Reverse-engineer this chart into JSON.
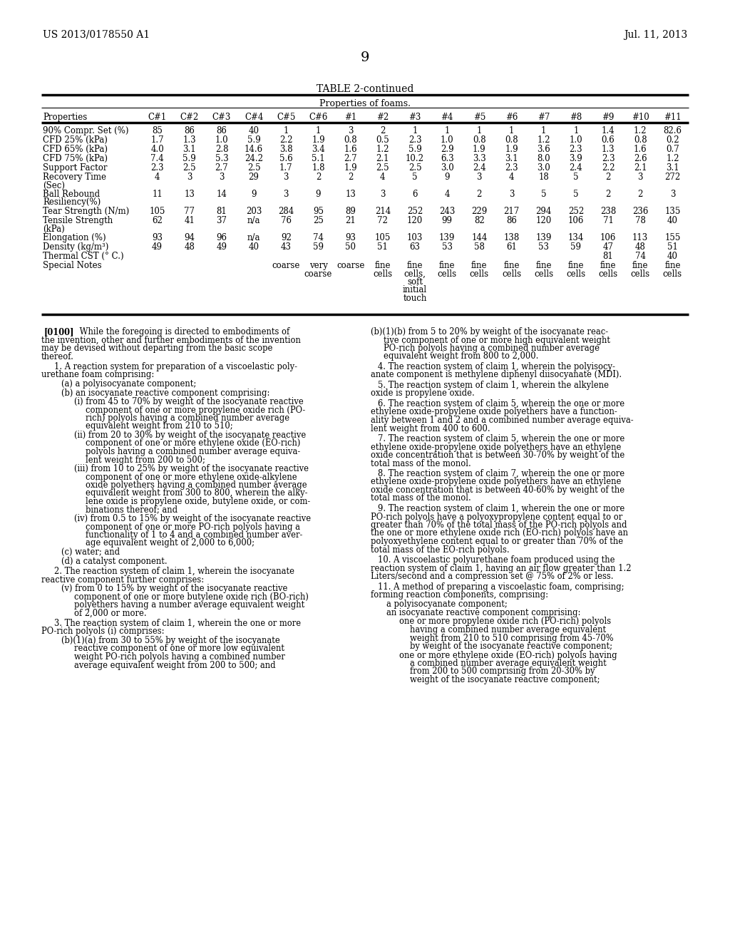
{
  "header_left": "US 2013/0178550 A1",
  "header_right": "Jul. 11, 2013",
  "page_number": "9",
  "table_title": "TABLE 2-continued",
  "table_subtitle": "Properties of foams.",
  "col_headers": [
    "Properties",
    "C#1",
    "C#2",
    "C#3",
    "C#4",
    "C#5",
    "C#6",
    "#1",
    "#2",
    "#3",
    "#4",
    "#5",
    "#6",
    "#7",
    "#8",
    "#9",
    "#10",
    "#11"
  ],
  "rows": [
    {
      "prop": "90% Compr. Set (%)",
      "vals": [
        "85",
        "86",
        "86",
        "40",
        "1",
        "1",
        "3",
        "2",
        "1",
        "1",
        "1",
        "1",
        "1",
        "1",
        "1.4",
        "1.2",
        "82.6"
      ]
    },
    {
      "prop": "CFD 25% (kPa)",
      "vals": [
        "1.7",
        "1.3",
        "1.0",
        "5.9",
        "2.2",
        "1.9",
        "0.8",
        "0.5",
        "2.3",
        "1.0",
        "0.8",
        "0.8",
        "1.2",
        "1.0",
        "0.6",
        "0.8",
        "0.2"
      ]
    },
    {
      "prop": "CFD 65% (kPa)",
      "vals": [
        "4.0",
        "3.1",
        "2.8",
        "14.6",
        "3.8",
        "3.4",
        "1.6",
        "1.2",
        "5.9",
        "2.9",
        "1.9",
        "1.9",
        "3.6",
        "2.3",
        "1.3",
        "1.6",
        "0.7"
      ]
    },
    {
      "prop": "CFD 75% (kPa)",
      "vals": [
        "7.4",
        "5.9",
        "5.3",
        "24.2",
        "5.6",
        "5.1",
        "2.7",
        "2.1",
        "10.2",
        "6.3",
        "3.3",
        "3.1",
        "8.0",
        "3.9",
        "2.3",
        "2.6",
        "1.2"
      ]
    },
    {
      "prop": "Support Factor",
      "vals": [
        "2.3",
        "2.5",
        "2.7",
        "2.5",
        "1.7",
        "1.8",
        "1.9",
        "2.5",
        "2.5",
        "3.0",
        "2.4",
        "2.3",
        "3.0",
        "2.4",
        "2.2",
        "2.1",
        "3.1"
      ]
    },
    {
      "prop": "Recovery Time\n(Sec)",
      "vals": [
        "4",
        "3",
        "3",
        "29",
        "3",
        "2",
        "2",
        "4",
        "5",
        "9",
        "3",
        "4",
        "18",
        "5",
        "2",
        "3",
        "272"
      ]
    },
    {
      "prop": "Ball Rebound\nResiliency(%)",
      "vals": [
        "11",
        "13",
        "14",
        "9",
        "3",
        "9",
        "13",
        "3",
        "6",
        "4",
        "2",
        "3",
        "5",
        "5",
        "2",
        "2",
        "3"
      ]
    },
    {
      "prop": "Tear Strength (N/m)",
      "vals": [
        "105",
        "77",
        "81",
        "203",
        "284",
        "95",
        "89",
        "214",
        "252",
        "243",
        "229",
        "217",
        "294",
        "252",
        "238",
        "236",
        "135"
      ]
    },
    {
      "prop": "Tensile Strength\n(kPa)",
      "vals": [
        "62",
        "41",
        "37",
        "n/a",
        "76",
        "25",
        "21",
        "72",
        "120",
        "99",
        "82",
        "86",
        "120",
        "106",
        "71",
        "78",
        "40"
      ]
    },
    {
      "prop": "Elongation (%)",
      "vals": [
        "93",
        "94",
        "96",
        "n/a",
        "92",
        "74",
        "93",
        "105",
        "103",
        "139",
        "144",
        "138",
        "139",
        "134",
        "106",
        "113",
        "155"
      ]
    },
    {
      "prop": "Density (kg/m³)",
      "vals": [
        "49",
        "48",
        "49",
        "40",
        "43",
        "59",
        "50",
        "51",
        "63",
        "53",
        "58",
        "61",
        "53",
        "59",
        "47",
        "48",
        "51"
      ]
    },
    {
      "prop": "Thermal CST (° C.)",
      "vals": [
        "",
        "",
        "",
        "",
        "",
        "",
        "",
        "",
        "",
        "",
        "",
        "",
        "",
        "",
        "81",
        "74",
        "40"
      ]
    },
    {
      "prop": "Special Notes",
      "vals": [
        "",
        "",
        "",
        "",
        "coarse",
        "very\ncoarse",
        "coarse",
        "fine\ncells",
        "fine\ncells,\nsoft\ninitial\ntouch",
        "fine\ncells",
        "fine\ncells",
        "fine\ncells",
        "fine\ncells",
        "fine\ncells",
        "fine\ncells",
        "fine\ncells",
        "fine\ncells"
      ]
    }
  ],
  "bg_color": "#ffffff",
  "text_color": "#000000"
}
